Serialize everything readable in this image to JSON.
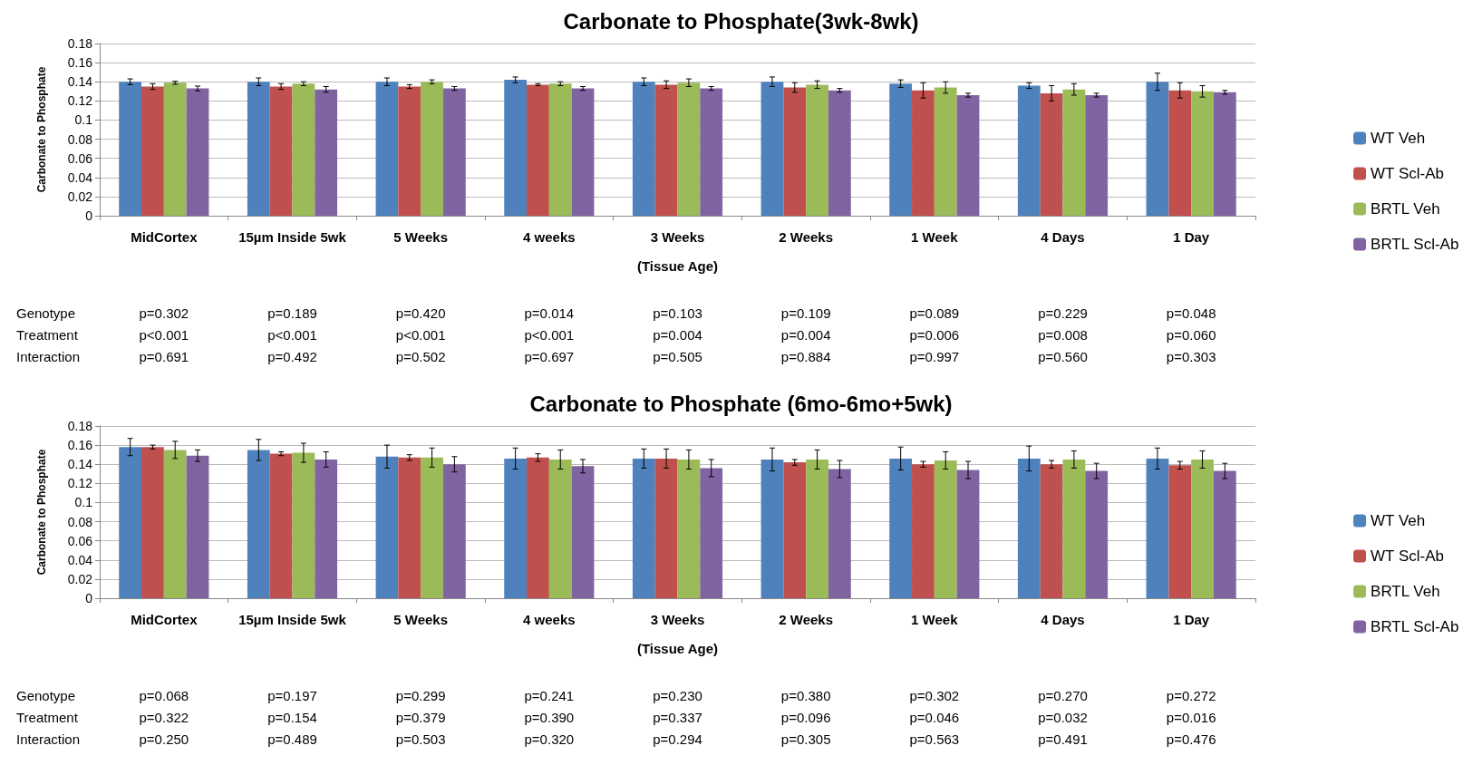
{
  "chart_data": [
    {
      "type": "bar",
      "title": "Carbonate to Phosphate(3wk-8wk)",
      "xlabel": "(Tissue Age)",
      "ylabel": "Carbonate to Phosphate",
      "categories": [
        "MidCortex",
        "15µm Inside 5wk",
        "5 Weeks",
        "4 weeks",
        "3 Weeks",
        "2 Weeks",
        "1 Week",
        "4 Days",
        "1 Day"
      ],
      "ylim": [
        0,
        0.18
      ],
      "yticks": [
        0,
        0.02,
        0.04,
        0.06,
        0.08,
        0.1,
        0.12,
        0.14,
        0.16,
        0.18
      ],
      "grid": "y",
      "legend": "right",
      "series": [
        {
          "name": "WT Veh",
          "color": "#4f81bd",
          "values": [
            0.14,
            0.14,
            0.14,
            0.142,
            0.14,
            0.14,
            0.138,
            0.136,
            0.14
          ],
          "errors": [
            0.003,
            0.004,
            0.004,
            0.003,
            0.004,
            0.005,
            0.004,
            0.003,
            0.009
          ]
        },
        {
          "name": "WT Scl-Ab",
          "color": "#c0504d",
          "values": [
            0.135,
            0.135,
            0.135,
            0.137,
            0.137,
            0.134,
            0.131,
            0.128,
            0.131
          ],
          "errors": [
            0.003,
            0.003,
            0.002,
            0.001,
            0.004,
            0.005,
            0.008,
            0.008,
            0.008
          ]
        },
        {
          "name": "BRTL Veh",
          "color": "#9bbb59",
          "values": [
            0.139,
            0.138,
            0.14,
            0.138,
            0.139,
            0.137,
            0.134,
            0.132,
            0.13
          ],
          "errors": [
            0.0015,
            0.002,
            0.002,
            0.002,
            0.004,
            0.004,
            0.006,
            0.006,
            0.006
          ]
        },
        {
          "name": "BRTL Scl-Ab",
          "color": "#8064a2",
          "values": [
            0.133,
            0.132,
            0.133,
            0.133,
            0.133,
            0.131,
            0.126,
            0.126,
            0.129
          ],
          "errors": [
            0.0025,
            0.003,
            0.002,
            0.002,
            0.002,
            0.002,
            0.002,
            0.002,
            0.002
          ]
        }
      ],
      "annotations": [
        "Genotype",
        "p=0.302",
        "p=0.189",
        "p=0.420",
        "p=0.014",
        "p=0.103",
        "p=0.109",
        "p=0.089",
        "p=0.229",
        "p=0.048",
        "Treatment",
        "p<0.001",
        "p<0.001",
        "p<0.001",
        "p<0.001",
        "p=0.004",
        "p=0.004",
        "p=0.006",
        "p=0.008",
        "p=0.060",
        "Interaction",
        "p=0.691",
        "p=0.492",
        "p=0.502",
        "p=0.697",
        "p=0.505",
        "p=0.884",
        "p=0.997",
        "p=0.560",
        "p=0.303"
      ]
    },
    {
      "type": "bar",
      "title": "Carbonate to Phosphate (6mo-6mo+5wk)",
      "xlabel": "(Tissue Age)",
      "ylabel": "Carbonate to Phosphate",
      "categories": [
        "MidCortex",
        "15µm Inside 5wk",
        "5 Weeks",
        "4 weeks",
        "3 Weeks",
        "2 Weeks",
        "1 Week",
        "4 Days",
        "1 Day"
      ],
      "ylim": [
        0,
        0.18
      ],
      "yticks": [
        0,
        0.02,
        0.04,
        0.06,
        0.08,
        0.1,
        0.12,
        0.14,
        0.16,
        0.18
      ],
      "grid": "y",
      "legend": "right",
      "series": [
        {
          "name": "WT Veh",
          "color": "#4f81bd",
          "values": [
            0.158,
            0.155,
            0.148,
            0.146,
            0.146,
            0.145,
            0.146,
            0.146,
            0.146
          ],
          "errors": [
            0.009,
            0.011,
            0.012,
            0.011,
            0.01,
            0.012,
            0.012,
            0.013,
            0.011
          ]
        },
        {
          "name": "WT Scl-Ab",
          "color": "#c0504d",
          "values": [
            0.158,
            0.151,
            0.147,
            0.147,
            0.146,
            0.142,
            0.14,
            0.14,
            0.139
          ],
          "errors": [
            0.002,
            0.002,
            0.003,
            0.004,
            0.01,
            0.003,
            0.003,
            0.004,
            0.004
          ]
        },
        {
          "name": "BRTL Veh",
          "color": "#9bbb59",
          "values": [
            0.155,
            0.152,
            0.147,
            0.145,
            0.145,
            0.145,
            0.144,
            0.145,
            0.145
          ],
          "errors": [
            0.009,
            0.01,
            0.01,
            0.01,
            0.01,
            0.01,
            0.009,
            0.009,
            0.009
          ]
        },
        {
          "name": "BRTL Scl-Ab",
          "color": "#8064a2",
          "values": [
            0.149,
            0.145,
            0.14,
            0.138,
            0.136,
            0.135,
            0.134,
            0.133,
            0.133
          ],
          "errors": [
            0.006,
            0.008,
            0.008,
            0.007,
            0.009,
            0.009,
            0.009,
            0.008,
            0.008
          ]
        }
      ],
      "annotations": [
        "Genotype",
        "p=0.068",
        "p=0.197",
        "p=0.299",
        "p=0.241",
        "p=0.230",
        "p=0.380",
        "p=0.302",
        "p=0.270",
        "p=0.272",
        "Treatment",
        "p=0.322",
        "p=0.154",
        "p=0.379",
        "p=0.390",
        "p=0.337",
        "p=0.096",
        "p=0.046",
        "p=0.032",
        "p=0.016",
        "Interaction",
        "p=0.250",
        "p=0.489",
        "p=0.503",
        "p=0.320",
        "p=0.294",
        "p=0.305",
        "p=0.563",
        "p=0.491",
        "p=0.476"
      ]
    }
  ]
}
